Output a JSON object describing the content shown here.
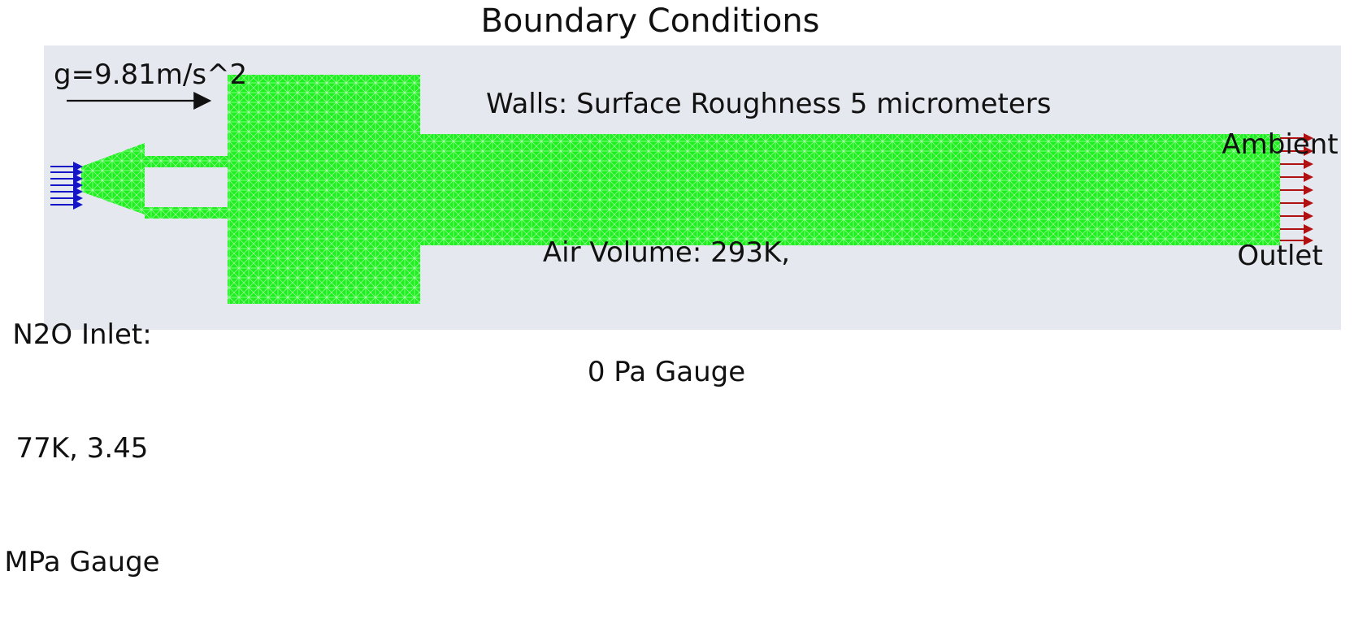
{
  "title": "Boundary Conditions",
  "gravity_label": "g=9.81m/s^2",
  "walls_label": "Walls: Surface Roughness 5 micrometers",
  "air_volume": {
    "line1": "Air Volume: 293K,",
    "line2": "0 Pa Gauge"
  },
  "outlet": {
    "line1": "Ambient",
    "line2": "Outlet"
  },
  "inlet": {
    "line1": "N2O Inlet:",
    "line2": "77K, 3.45",
    "line3": "MPa Gauge"
  },
  "colors": {
    "background_panel": "#e6e8ef",
    "mesh_fill": "#1ef01e",
    "mesh_lines": "#a8ffa8",
    "inlet_arrows": "#1515c8",
    "outlet_arrows": "#b01010",
    "gravity_arrow": "#111111"
  }
}
